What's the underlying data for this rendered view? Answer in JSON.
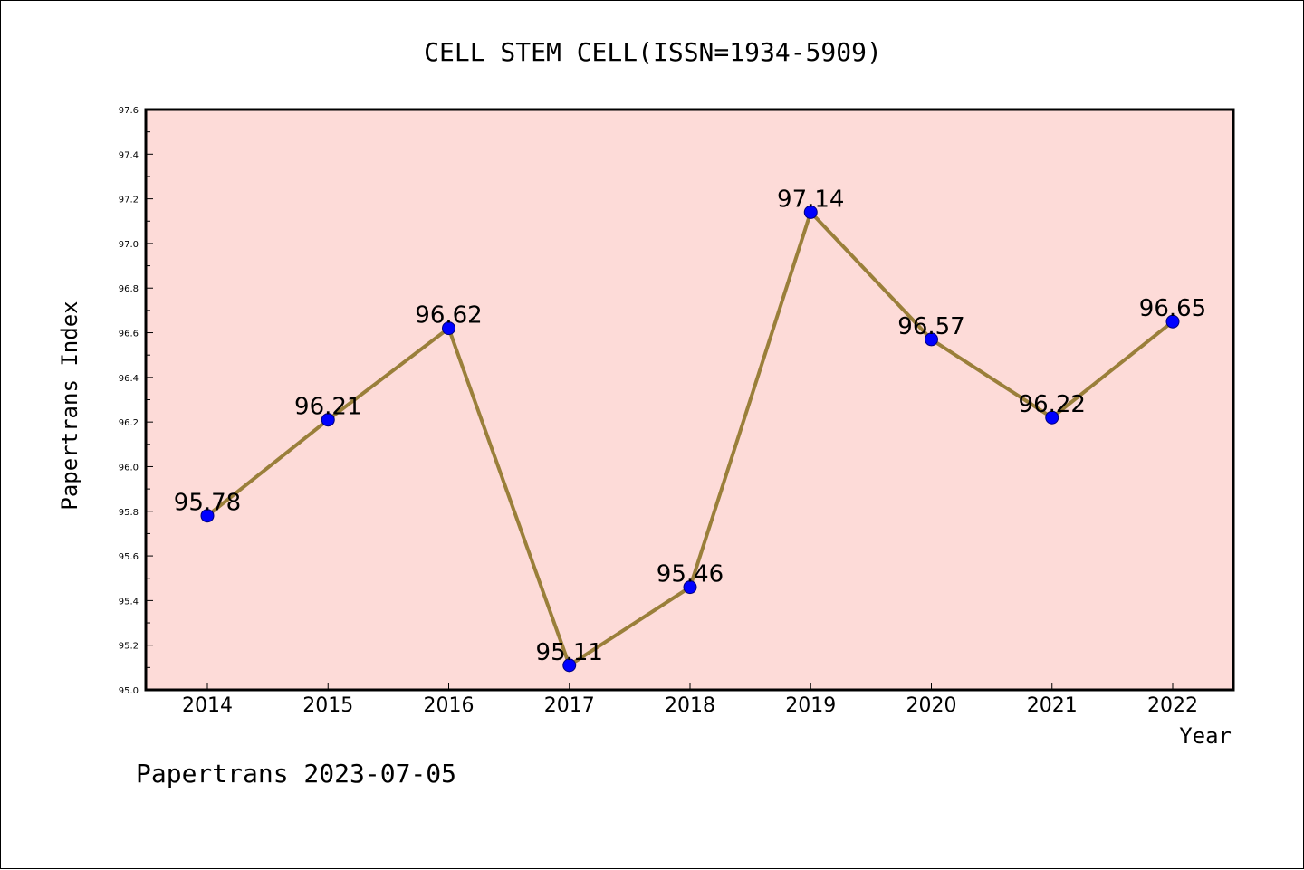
{
  "colors": {
    "plot_background": "#fddbd8",
    "line": "#9a7f3a",
    "marker_fill": "#0000ff",
    "marker_stroke": "#00007a",
    "axis": "#000000"
  },
  "footer": {
    "text": "Papertrans 2023-07-05"
  },
  "chart_data": {
    "type": "line",
    "title": "CELL STEM CELL(ISSN=1934-5909)",
    "xlabel": "Year",
    "ylabel": "Papertrans Index",
    "categories": [
      "2014",
      "2015",
      "2016",
      "2017",
      "2018",
      "2019",
      "2020",
      "2021",
      "2022"
    ],
    "series": [
      {
        "values": [
          95.78,
          96.21,
          96.62,
          95.11,
          95.46,
          97.14,
          96.57,
          96.22,
          96.65
        ]
      }
    ],
    "data_labels": [
      "95.78",
      "96.21",
      "96.62",
      "95.11",
      "95.46",
      "97.14",
      "96.57",
      "96.22",
      "96.65"
    ],
    "ylim": [
      95.0,
      97.6
    ],
    "yticks": [
      "95.0",
      "95.2",
      "95.4",
      "95.6",
      "95.8",
      "96.0",
      "96.2",
      "96.4",
      "96.6",
      "96.8",
      "97.0",
      "97.2",
      "97.4",
      "97.6"
    ],
    "grid": false,
    "legend": "none",
    "marker": "circle"
  }
}
